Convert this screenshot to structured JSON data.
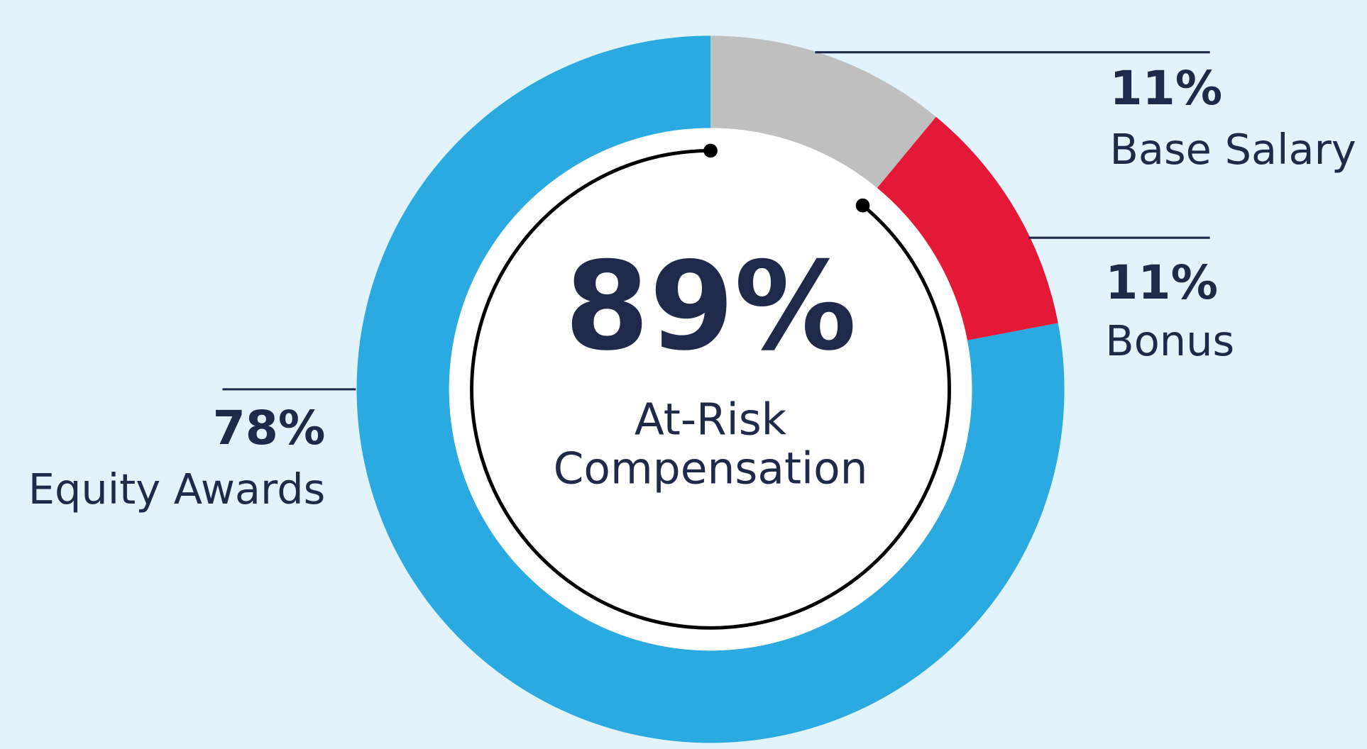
{
  "chart_data": {
    "type": "donut",
    "categories": [
      "Base Salary",
      "Bonus",
      "Equity Awards"
    ],
    "values": [
      11,
      11,
      78
    ],
    "value_labels": [
      "11%",
      "11%",
      "78%"
    ],
    "colors": [
      "#bfbfbf",
      "#e31937",
      "#2aaae1"
    ],
    "center_value": 89,
    "center_value_label": "89%",
    "center_text": [
      "At-Risk",
      "Compensation"
    ]
  }
}
